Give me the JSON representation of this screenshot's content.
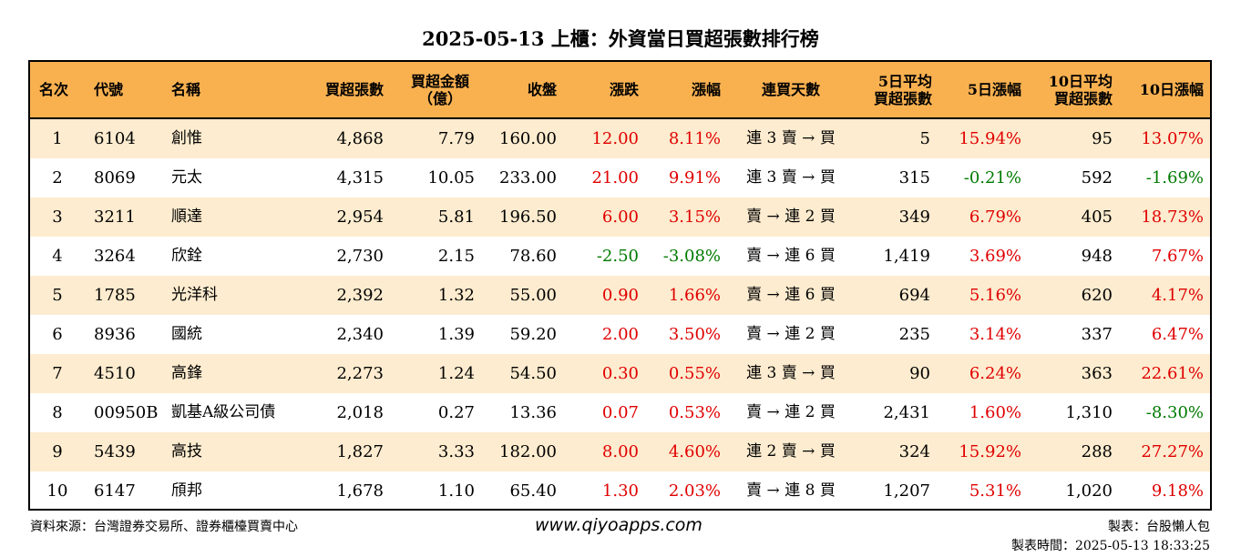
{
  "title": "2025-05-13 上櫃：外資當日買超張數排行榜",
  "headers": {
    "rank": "名次",
    "code": "代號",
    "name": "名稱",
    "net_lots": "買超張數",
    "amount_l1": "買超金額",
    "amount_l2": "（億）",
    "close": "收盤",
    "change": "漲跌",
    "change_pct": "漲幅",
    "streak": "連買天數",
    "avg5_l1": "5日平均",
    "avg5_l2": "買超張數",
    "pct5": "5日漲幅",
    "avg10_l1": "10日平均",
    "avg10_l2": "買超張數",
    "pct10": "10日漲幅"
  },
  "rows": [
    {
      "rank": "1",
      "code": "6104",
      "name": "創惟",
      "net": "4,868",
      "amt": "7.79",
      "close": "160.00",
      "chg": "12.00",
      "chg_dir": "up",
      "pct": "8.11%",
      "pct_dir": "up",
      "streak": "連 3 賣 → 買",
      "avg5": "5",
      "p5": "15.94%",
      "p5_dir": "up",
      "avg10": "95",
      "p10": "13.07%",
      "p10_dir": "up"
    },
    {
      "rank": "2",
      "code": "8069",
      "name": "元太",
      "net": "4,315",
      "amt": "10.05",
      "close": "233.00",
      "chg": "21.00",
      "chg_dir": "up",
      "pct": "9.91%",
      "pct_dir": "up",
      "streak": "連 3 賣 → 買",
      "avg5": "315",
      "p5": "-0.21%",
      "p5_dir": "down",
      "avg10": "592",
      "p10": "-1.69%",
      "p10_dir": "down"
    },
    {
      "rank": "3",
      "code": "3211",
      "name": "順達",
      "net": "2,954",
      "amt": "5.81",
      "close": "196.50",
      "chg": "6.00",
      "chg_dir": "up",
      "pct": "3.15%",
      "pct_dir": "up",
      "streak": "賣 → 連 2 買",
      "avg5": "349",
      "p5": "6.79%",
      "p5_dir": "up",
      "avg10": "405",
      "p10": "18.73%",
      "p10_dir": "up"
    },
    {
      "rank": "4",
      "code": "3264",
      "name": "欣銓",
      "net": "2,730",
      "amt": "2.15",
      "close": "78.60",
      "chg": "-2.50",
      "chg_dir": "down",
      "pct": "-3.08%",
      "pct_dir": "down",
      "streak": "賣 → 連 6 買",
      "avg5": "1,419",
      "p5": "3.69%",
      "p5_dir": "up",
      "avg10": "948",
      "p10": "7.67%",
      "p10_dir": "up"
    },
    {
      "rank": "5",
      "code": "1785",
      "name": "光洋科",
      "net": "2,392",
      "amt": "1.32",
      "close": "55.00",
      "chg": "0.90",
      "chg_dir": "up",
      "pct": "1.66%",
      "pct_dir": "up",
      "streak": "賣 → 連 6 買",
      "avg5": "694",
      "p5": "5.16%",
      "p5_dir": "up",
      "avg10": "620",
      "p10": "4.17%",
      "p10_dir": "up"
    },
    {
      "rank": "6",
      "code": "8936",
      "name": "國統",
      "net": "2,340",
      "amt": "1.39",
      "close": "59.20",
      "chg": "2.00",
      "chg_dir": "up",
      "pct": "3.50%",
      "pct_dir": "up",
      "streak": "賣 → 連 2 買",
      "avg5": "235",
      "p5": "3.14%",
      "p5_dir": "up",
      "avg10": "337",
      "p10": "6.47%",
      "p10_dir": "up"
    },
    {
      "rank": "7",
      "code": "4510",
      "name": "高鋒",
      "net": "2,273",
      "amt": "1.24",
      "close": "54.50",
      "chg": "0.30",
      "chg_dir": "up",
      "pct": "0.55%",
      "pct_dir": "up",
      "streak": "連 3 賣 → 買",
      "avg5": "90",
      "p5": "6.24%",
      "p5_dir": "up",
      "avg10": "363",
      "p10": "22.61%",
      "p10_dir": "up"
    },
    {
      "rank": "8",
      "code": "00950B",
      "name": "凱基A級公司債",
      "net": "2,018",
      "amt": "0.27",
      "close": "13.36",
      "chg": "0.07",
      "chg_dir": "up",
      "pct": "0.53%",
      "pct_dir": "up",
      "streak": "賣 → 連 2 買",
      "avg5": "2,431",
      "p5": "1.60%",
      "p5_dir": "up",
      "avg10": "1,310",
      "p10": "-8.30%",
      "p10_dir": "down"
    },
    {
      "rank": "9",
      "code": "5439",
      "name": "高技",
      "net": "1,827",
      "amt": "3.33",
      "close": "182.00",
      "chg": "8.00",
      "chg_dir": "up",
      "pct": "4.60%",
      "pct_dir": "up",
      "streak": "連 2 賣 → 買",
      "avg5": "324",
      "p5": "15.92%",
      "p5_dir": "up",
      "avg10": "288",
      "p10": "27.27%",
      "p10_dir": "up"
    },
    {
      "rank": "10",
      "code": "6147",
      "name": "頎邦",
      "net": "1,678",
      "amt": "1.10",
      "close": "65.40",
      "chg": "1.30",
      "chg_dir": "up",
      "pct": "2.03%",
      "pct_dir": "up",
      "streak": "賣 → 連 8 買",
      "avg5": "1,207",
      "p5": "5.31%",
      "p5_dir": "up",
      "avg10": "1,020",
      "p10": "9.18%",
      "p10_dir": "up"
    }
  ],
  "footer": {
    "source": "資料來源：台灣證券交易所、證券櫃檯買賣中心",
    "website": "www.qiyoapps.com",
    "maker": "製表：台股懶人包",
    "made_time": "製表時間：2025-05-13 18:33:25"
  },
  "colors": {
    "header_bg": "#f9b150",
    "odd_row_bg": "#fdeccf",
    "up": "#e00000",
    "down": "#007a00"
  }
}
